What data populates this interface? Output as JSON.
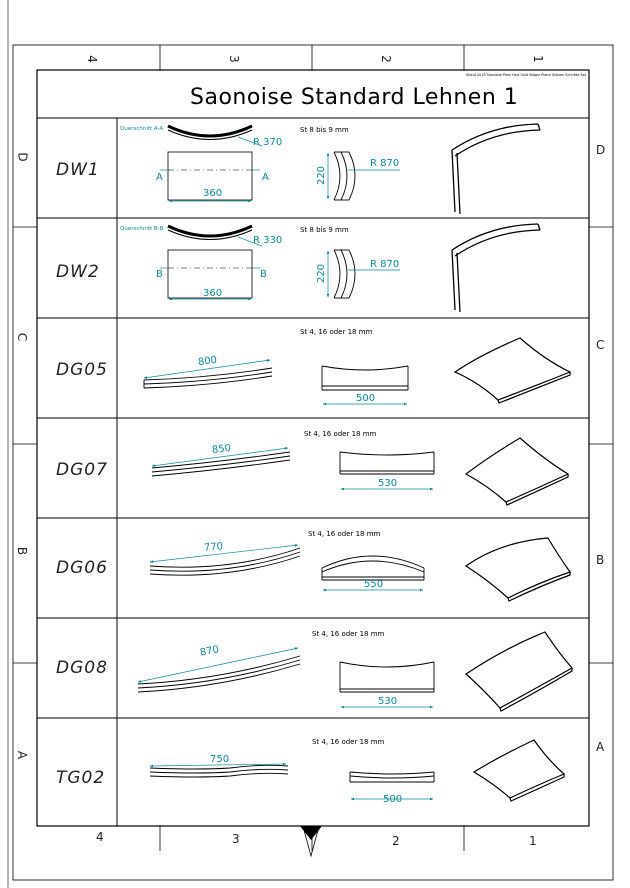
{
  "sheet": {
    "title": "Saonoise Standard Lehnen 1",
    "header_note": "Stand 2019 Saonoise Plexi Holz Gold Bögen Plane Gleisen Schnitte Sessel Lehnen AH"
  },
  "zones": {
    "columns_top": [
      "4",
      "3",
      "2",
      "1"
    ],
    "columns_bottom": [
      "4",
      "3",
      "2",
      "1"
    ],
    "rows_left": [
      "D",
      "C",
      "B",
      "A"
    ],
    "rows_right": [
      "D",
      "C",
      "B",
      "A"
    ]
  },
  "rows": [
    {
      "code": "DW1",
      "section_label": "Querschnitt A-A",
      "radius_section": "R 370",
      "section_marks": [
        "A",
        "A"
      ],
      "width": "360",
      "thickness": "St 8 bis 9 mm",
      "height": "220",
      "radius_side": "R 870"
    },
    {
      "code": "DW2",
      "section_label": "Querschnitt B-B",
      "radius_section": "R 330",
      "section_marks": [
        "B",
        "B"
      ],
      "width": "360",
      "thickness": "St 8 bis 9 mm",
      "height": "220",
      "radius_side": "R 870"
    },
    {
      "code": "DG05",
      "length": "800",
      "thickness": "St 4, 16 oder 18 mm",
      "width": "500"
    },
    {
      "code": "DG07",
      "length": "850",
      "thickness": "St 4, 16 oder 18 mm",
      "width": "530"
    },
    {
      "code": "DG06",
      "length": "770",
      "thickness": "St 4, 16 oder 18 mm",
      "width": "550"
    },
    {
      "code": "DG08",
      "length": "870",
      "thickness": "St 4, 16 oder 18 mm",
      "width": "530"
    },
    {
      "code": "TG02",
      "length": "750",
      "thickness": "St 4, 16 oder 18 mm",
      "width": "500"
    }
  ]
}
